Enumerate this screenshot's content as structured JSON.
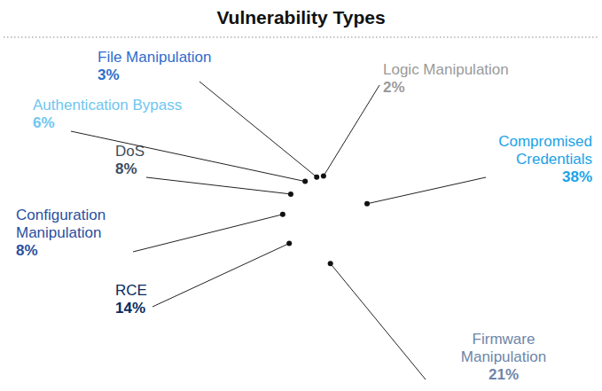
{
  "chart_data": {
    "type": "pie",
    "title": "Vulnerability Types",
    "categories": [
      "Compromised Credentials",
      "Firmware Manipulation",
      "RCE",
      "Configuration Manipulation",
      "DoS",
      "Authentication Bypass",
      "File Manipulation",
      "Logic Manipulation"
    ],
    "values": [
      38,
      21,
      14,
      8,
      8,
      6,
      3,
      2
    ],
    "value_labels": [
      "38%",
      "21%",
      "14%",
      "8%",
      "8%",
      "6%",
      "3%",
      "2%"
    ],
    "colors": [
      "#1aa3e8",
      "#6e86a8",
      "#0b2a5e",
      "#2a4fa0",
      "#3d4d5e",
      "#6ec6f0",
      "#2f6ccc",
      "#9a9a9a"
    ],
    "data_labels": true
  }
}
